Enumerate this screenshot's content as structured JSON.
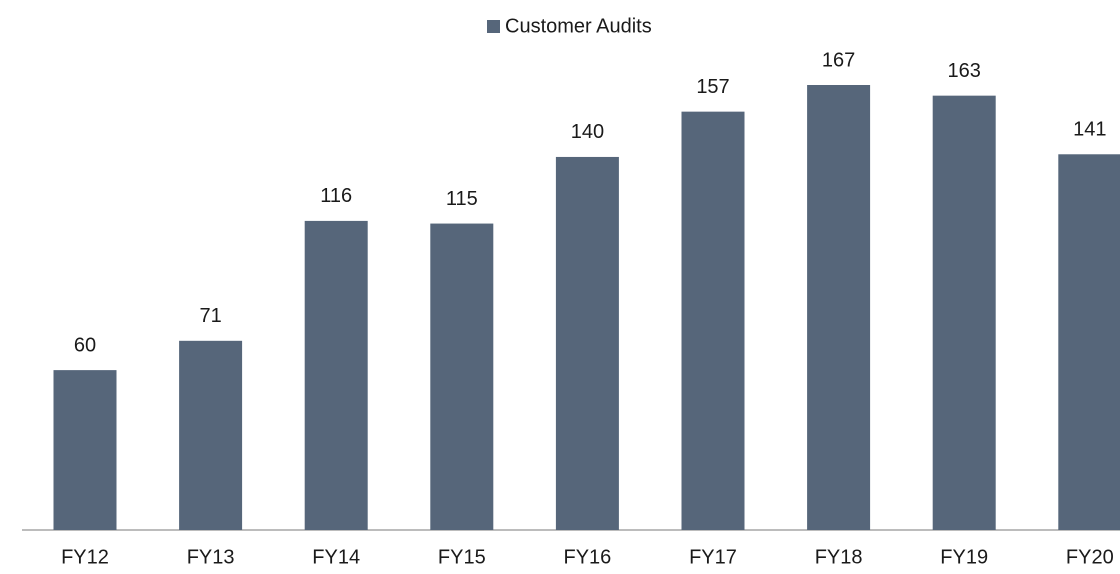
{
  "chart_data": {
    "type": "bar",
    "categories": [
      "FY12",
      "FY13",
      "FY14",
      "FY15",
      "FY16",
      "FY17",
      "FY18",
      "FY19",
      "FY20"
    ],
    "series": [
      {
        "name": "Customer Audits",
        "color": "#56667a",
        "values": [
          60,
          71,
          116,
          115,
          140,
          157,
          167,
          163,
          141
        ]
      }
    ]
  }
}
